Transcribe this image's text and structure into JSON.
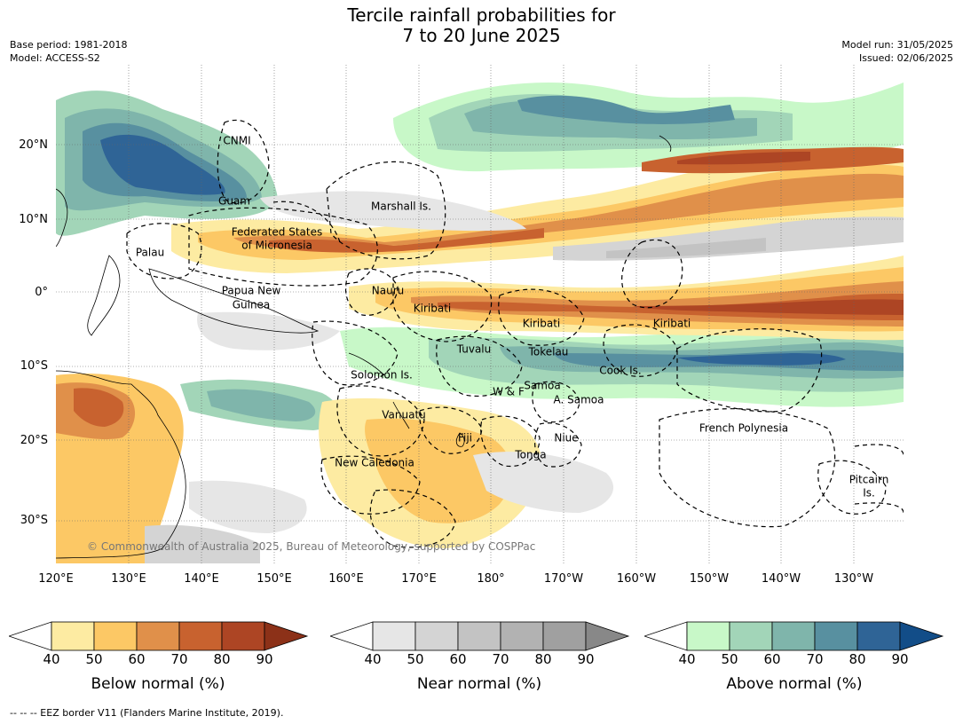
{
  "title": {
    "line1": "Tercile rainfall probabilities for",
    "line2": "7 to 20 June 2025"
  },
  "meta": {
    "base_period": "Base period: 1981-2018",
    "model": "Model: ACCESS-S2",
    "model_run": "Model run: 31/05/2025",
    "issued": "Issued: 02/06/2025"
  },
  "map": {
    "lat_labels": [
      "20°N",
      "10°N",
      "0°",
      "10°S",
      "20°S",
      "30°S"
    ],
    "lon_labels": [
      "120°E",
      "130°E",
      "140°E",
      "150°E",
      "160°E",
      "170°E",
      "180°",
      "170°W",
      "160°W",
      "150°W",
      "140°W",
      "130°W"
    ],
    "regions": {
      "cnmi": "CNMI",
      "guam": "Guam",
      "marshall": "Marshall Is.",
      "fsm_1": "Federated States",
      "fsm_2": "of Micronesia",
      "palau": "Palau",
      "png_1": "Papua New",
      "png_2": "Guinea",
      "nauru": "Nauru",
      "kiribati_w": "Kiribati",
      "kiribati_c": "Kiribati",
      "kiribati_e": "Kiribati",
      "tuvalu": "Tuvalu",
      "tokelau": "Tokelau",
      "cook": "Cook Is.",
      "solomon": "Solomon Is.",
      "wf": "W & F",
      "samoa": "Samoa",
      "asamoa": "A. Samoa",
      "vanuatu": "Vanuatu",
      "fiji": "Fiji",
      "niue": "Niue",
      "tonga": "Tonga",
      "new_caledonia": "New Caledonia",
      "french_polynesia": "French Polynesia",
      "pitcairn_1": "Pitcairn",
      "pitcairn_2": "Is."
    },
    "copyright": "© Commonwealth of Australia 2025, Bureau of Meteorology, supported by COSPPac"
  },
  "colorbars": [
    {
      "label": "Below normal (%)",
      "ticks": [
        "40",
        "50",
        "60",
        "70",
        "80",
        "90"
      ],
      "colors": [
        "#ffffff",
        "#fdeba2",
        "#fcc865",
        "#e0904a",
        "#c8622f",
        "#ad4524",
        "#8c3118"
      ]
    },
    {
      "label": "Near normal (%)",
      "ticks": [
        "40",
        "50",
        "60",
        "70",
        "80",
        "90"
      ],
      "colors": [
        "#ffffff",
        "#e6e6e6",
        "#d4d4d4",
        "#c3c3c3",
        "#b2b2b2",
        "#a0a0a0",
        "#888888"
      ]
    },
    {
      "label": "Above normal (%)",
      "ticks": [
        "40",
        "50",
        "60",
        "70",
        "80",
        "90"
      ],
      "colors": [
        "#ffffff",
        "#c8f8c8",
        "#a2d5b8",
        "#7fb5ab",
        "#5890a0",
        "#2f6496",
        "#124d88"
      ]
    }
  ],
  "footnote": "-- -- -- EEZ border V11 (Flanders Marine Institute, 2019)."
}
